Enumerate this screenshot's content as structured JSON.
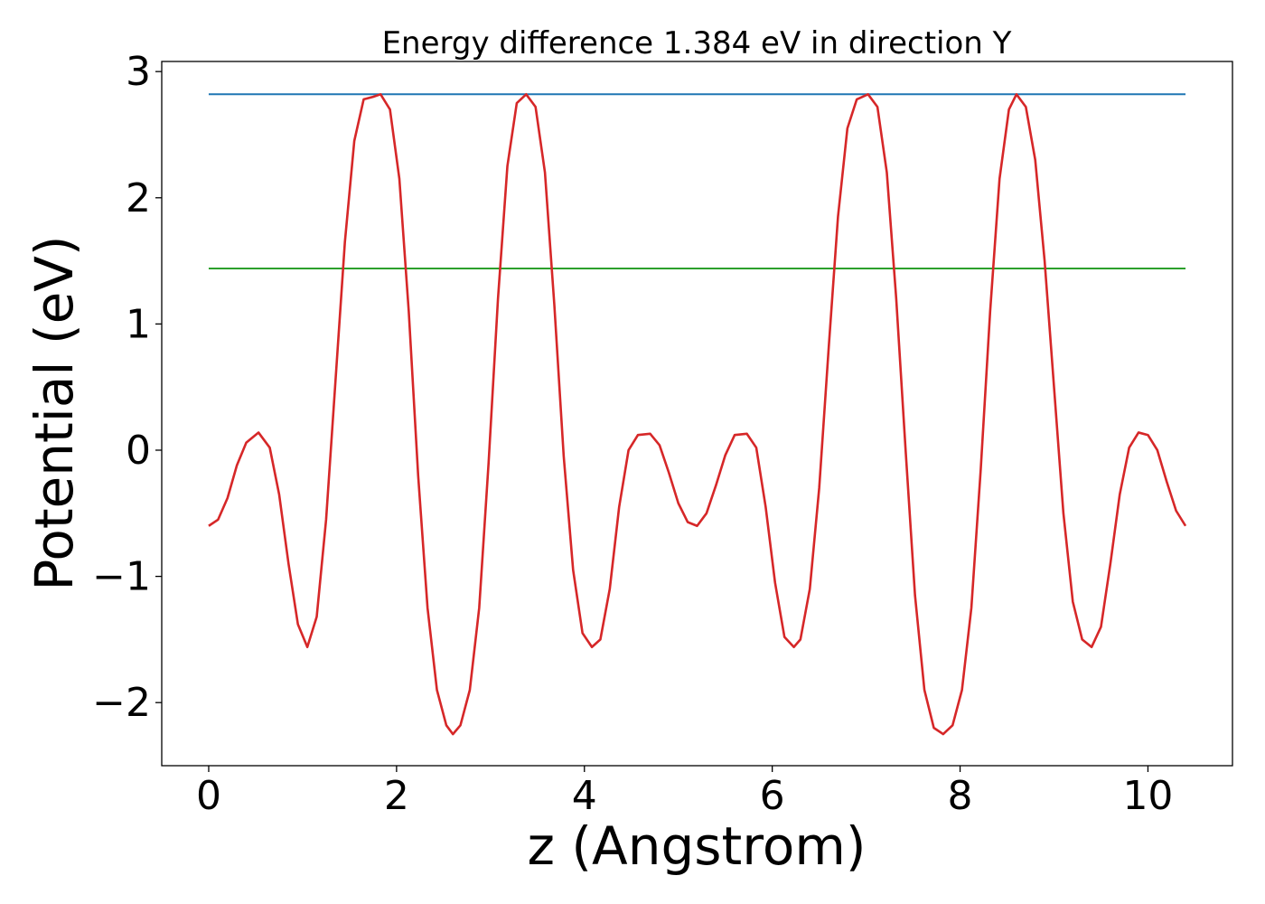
{
  "chart_data": {
    "type": "line",
    "title": "Energy difference 1.384 eV in direction Y",
    "xlabel": "z (Angstrom)",
    "ylabel": "Potential (eV)",
    "xlim": [
      -0.5,
      10.9
    ],
    "ylim": [
      -2.5,
      3.08
    ],
    "xticks": [
      0,
      2,
      4,
      6,
      8,
      10
    ],
    "xtick_labels": [
      "0",
      "2",
      "4",
      "6",
      "8",
      "10"
    ],
    "yticks": [
      -2,
      -1,
      0,
      1,
      2,
      3
    ],
    "ytick_labels": [
      "−2",
      "−1",
      "0",
      "1",
      "2",
      "3"
    ],
    "grid": false,
    "legend": "none",
    "series": [
      {
        "color": "#1f77b4",
        "x": [
          0,
          10.4
        ],
        "y": [
          2.82,
          2.82
        ]
      },
      {
        "color": "#2ca02c",
        "x": [
          0,
          10.4
        ],
        "y": [
          1.44,
          1.44
        ]
      },
      {
        "color": "#d62728",
        "x": [
          0,
          0.1,
          0.2,
          0.3,
          0.4,
          0.53,
          0.65,
          0.75,
          0.85,
          0.95,
          1.05,
          1.15,
          1.25,
          1.35,
          1.45,
          1.55,
          1.65,
          1.75,
          1.83,
          1.93,
          2.03,
          2.13,
          2.23,
          2.33,
          2.43,
          2.53,
          2.6,
          2.68,
          2.78,
          2.88,
          2.98,
          3.08,
          3.18,
          3.28,
          3.38,
          3.48,
          3.58,
          3.68,
          3.78,
          3.88,
          3.98,
          4.08,
          4.17,
          4.27,
          4.37,
          4.47,
          4.57,
          4.7,
          4.8,
          4.9,
          5.0,
          5.1,
          5.2,
          5.3,
          5.4,
          5.5,
          5.6,
          5.73,
          5.83,
          5.93,
          6.03,
          6.13,
          6.23,
          6.3,
          6.4,
          6.5,
          6.6,
          6.7,
          6.8,
          6.9,
          7.02,
          7.12,
          7.22,
          7.32,
          7.42,
          7.52,
          7.62,
          7.72,
          7.82,
          7.92,
          8.02,
          8.12,
          8.22,
          8.32,
          8.42,
          8.52,
          8.6,
          8.7,
          8.8,
          8.9,
          9.0,
          9.1,
          9.2,
          9.3,
          9.4,
          9.5,
          9.6,
          9.7,
          9.8,
          9.9,
          10.0,
          10.1,
          10.2,
          10.3,
          10.4
        ],
        "y": [
          -0.6,
          -0.55,
          -0.38,
          -0.12,
          0.06,
          0.14,
          0.02,
          -0.35,
          -0.9,
          -1.38,
          -1.56,
          -1.32,
          -0.55,
          0.55,
          1.65,
          2.45,
          2.78,
          2.8,
          2.82,
          2.7,
          2.15,
          1.1,
          -0.2,
          -1.25,
          -1.9,
          -2.18,
          -2.25,
          -2.18,
          -1.9,
          -1.25,
          -0.1,
          1.2,
          2.25,
          2.75,
          2.82,
          2.72,
          2.2,
          1.15,
          -0.05,
          -0.95,
          -1.45,
          -1.56,
          -1.5,
          -1.1,
          -0.45,
          0.0,
          0.12,
          0.13,
          0.04,
          -0.18,
          -0.42,
          -0.57,
          -0.6,
          -0.5,
          -0.28,
          -0.04,
          0.12,
          0.13,
          0.02,
          -0.45,
          -1.05,
          -1.48,
          -1.56,
          -1.5,
          -1.1,
          -0.3,
          0.8,
          1.85,
          2.55,
          2.78,
          2.82,
          2.72,
          2.2,
          1.2,
          0.0,
          -1.15,
          -1.9,
          -2.2,
          -2.25,
          -2.18,
          -1.9,
          -1.25,
          -0.15,
          1.1,
          2.15,
          2.7,
          2.82,
          2.72,
          2.3,
          1.5,
          0.5,
          -0.5,
          -1.2,
          -1.5,
          -1.56,
          -1.4,
          -0.9,
          -0.35,
          0.02,
          0.14,
          0.12,
          0.0,
          -0.25,
          -0.48,
          -0.6
        ]
      }
    ]
  }
}
